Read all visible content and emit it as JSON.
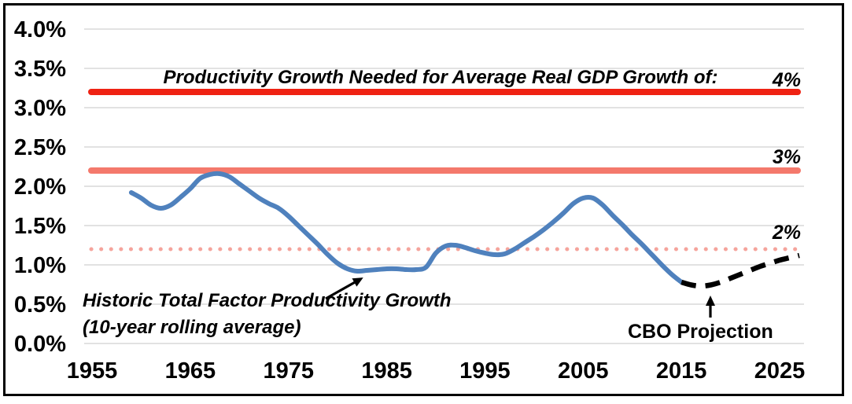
{
  "chart_data": {
    "type": "line",
    "title": "Productivity Growth Needed for Average Real GDP Growth of:",
    "xlabel": "",
    "ylabel": "",
    "grid": true,
    "legend_position": "none",
    "axis_range": {
      "x": [
        1954,
        2028
      ],
      "y_percent": [
        0.0,
        4.0
      ]
    },
    "y_ticks": [
      {
        "label": "4.0%",
        "value": 4.0
      },
      {
        "label": "3.5%",
        "value": 3.5
      },
      {
        "label": "3.0%",
        "value": 3.0
      },
      {
        "label": "2.5%",
        "value": 2.5
      },
      {
        "label": "2.0%",
        "value": 2.0
      },
      {
        "label": "1.5%",
        "value": 1.5
      },
      {
        "label": "1.0%",
        "value": 1.0
      },
      {
        "label": "0.5%",
        "value": 0.5
      },
      {
        "label": "0.0%",
        "value": 0.0
      }
    ],
    "x_ticks": [
      {
        "label": "1955",
        "value": 1955
      },
      {
        "label": "1965",
        "value": 1965
      },
      {
        "label": "1975",
        "value": 1975
      },
      {
        "label": "1985",
        "value": 1985
      },
      {
        "label": "1995",
        "value": 1995
      },
      {
        "label": "2005",
        "value": 2005
      },
      {
        "label": "2015",
        "value": 2015
      },
      {
        "label": "2025",
        "value": 2025
      }
    ],
    "reference_lines": [
      {
        "label": "4%",
        "value_percent": 3.2,
        "style": "solid",
        "color": "#EF2213"
      },
      {
        "label": "3%",
        "value_percent": 2.2,
        "style": "solid",
        "color": "#F4796C"
      },
      {
        "label": "2%",
        "value_percent": 1.2,
        "style": "dotted",
        "color": "#F5A49C"
      }
    ],
    "series": [
      {
        "key": "historic-tfp-line",
        "name": "Historic Total Factor Productivity Growth (10-year rolling average)",
        "color": "#4F81BD",
        "style": "solid",
        "points": [
          [
            1959,
            1.92
          ],
          [
            1960,
            1.85
          ],
          [
            1961,
            1.76
          ],
          [
            1962,
            1.72
          ],
          [
            1963,
            1.76
          ],
          [
            1964,
            1.86
          ],
          [
            1965,
            1.97
          ],
          [
            1966,
            2.1
          ],
          [
            1967,
            2.15
          ],
          [
            1968,
            2.16
          ],
          [
            1969,
            2.12
          ],
          [
            1970,
            2.03
          ],
          [
            1971,
            1.94
          ],
          [
            1972,
            1.85
          ],
          [
            1973,
            1.78
          ],
          [
            1974,
            1.72
          ],
          [
            1975,
            1.62
          ],
          [
            1976,
            1.5
          ],
          [
            1977,
            1.38
          ],
          [
            1978,
            1.26
          ],
          [
            1979,
            1.13
          ],
          [
            1980,
            1.02
          ],
          [
            1981,
            0.95
          ],
          [
            1982,
            0.92
          ],
          [
            1983,
            0.93
          ],
          [
            1984,
            0.94
          ],
          [
            1985,
            0.95
          ],
          [
            1986,
            0.95
          ],
          [
            1987,
            0.94
          ],
          [
            1988,
            0.94
          ],
          [
            1989,
            0.97
          ],
          [
            1990,
            1.15
          ],
          [
            1991,
            1.24
          ],
          [
            1992,
            1.25
          ],
          [
            1993,
            1.22
          ],
          [
            1994,
            1.18
          ],
          [
            1995,
            1.15
          ],
          [
            1996,
            1.13
          ],
          [
            1997,
            1.14
          ],
          [
            1998,
            1.2
          ],
          [
            1999,
            1.28
          ],
          [
            2000,
            1.36
          ],
          [
            2001,
            1.45
          ],
          [
            2002,
            1.55
          ],
          [
            2003,
            1.66
          ],
          [
            2004,
            1.78
          ],
          [
            2005,
            1.85
          ],
          [
            2006,
            1.85
          ],
          [
            2007,
            1.76
          ],
          [
            2008,
            1.63
          ],
          [
            2009,
            1.51
          ],
          [
            2010,
            1.38
          ],
          [
            2011,
            1.26
          ],
          [
            2012,
            1.13
          ],
          [
            2013,
            1.0
          ],
          [
            2014,
            0.88
          ],
          [
            2015,
            0.78
          ]
        ]
      },
      {
        "key": "cbo-projection-line",
        "name": "CBO Projection",
        "color": "#000000",
        "style": "dashed",
        "points": [
          [
            2015,
            0.78
          ],
          [
            2016,
            0.745
          ],
          [
            2017,
            0.73
          ],
          [
            2018,
            0.745
          ],
          [
            2019,
            0.78
          ],
          [
            2020,
            0.83
          ],
          [
            2021,
            0.88
          ],
          [
            2022,
            0.93
          ],
          [
            2023,
            0.98
          ],
          [
            2024,
            1.02
          ],
          [
            2025,
            1.06
          ],
          [
            2026,
            1.09
          ],
          [
            2027,
            1.12
          ]
        ]
      }
    ],
    "annotations": {
      "historic": {
        "line1": "Historic Total Factor Productivity Growth",
        "line2": "(10-year rolling average)"
      },
      "cbo": {
        "text": "CBO Projection"
      }
    }
  },
  "colors": {
    "background": "#FFFFFF",
    "frame_border": "#000000",
    "gridline": "#D9D9D9",
    "text": "#000000",
    "historic_line": "#4F81BD",
    "projection_line": "#000000",
    "ref_4pct": "#EF2213",
    "ref_3pct": "#F4796C",
    "ref_2pct": "#F5A49C"
  }
}
